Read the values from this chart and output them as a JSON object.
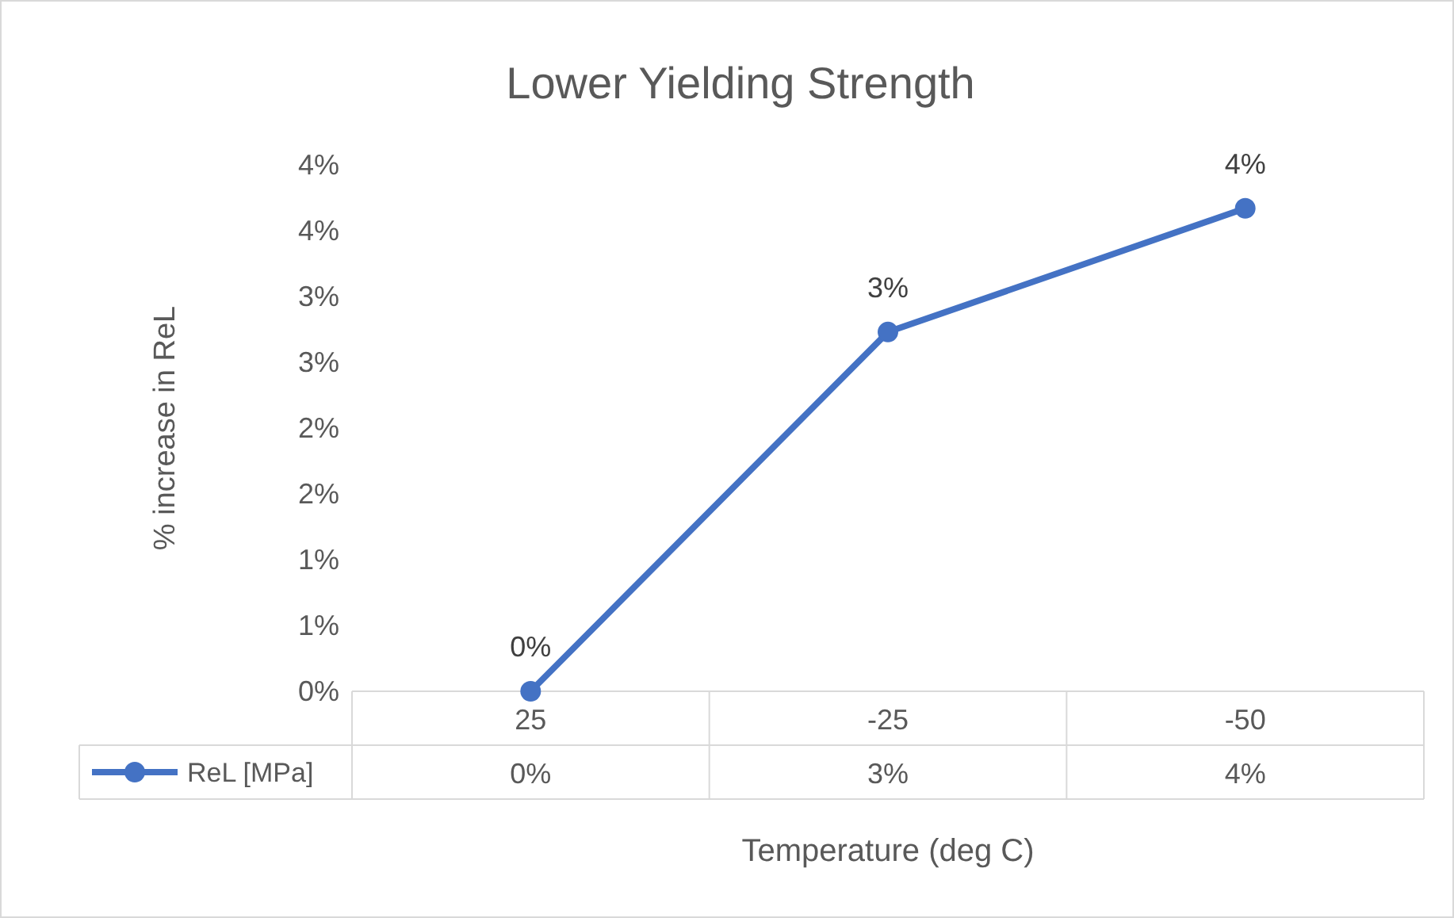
{
  "chart_data": {
    "type": "line",
    "title": "Lower Yielding Strength",
    "xlabel": "Temperature (deg C)",
    "ylabel": "% increase in ReL",
    "categories": [
      "25",
      "-25",
      "-50"
    ],
    "series": [
      {
        "name": "ReL [MPa]",
        "color": "#4472c4",
        "values": [
          0,
          2.73,
          3.67
        ],
        "value_labels": [
          "0%",
          "3%",
          "4%"
        ]
      }
    ],
    "ylim": [
      0,
      4
    ],
    "yticks": [
      {
        "value": 0,
        "label": "0%"
      },
      {
        "value": 0.5,
        "label": "1%"
      },
      {
        "value": 1,
        "label": "1%"
      },
      {
        "value": 1.5,
        "label": "2%"
      },
      {
        "value": 2,
        "label": "2%"
      },
      {
        "value": 2.5,
        "label": "3%"
      },
      {
        "value": 3,
        "label": "3%"
      },
      {
        "value": 3.5,
        "label": "4%"
      },
      {
        "value": 4,
        "label": "4%"
      }
    ],
    "grid": false,
    "legend": "bottom",
    "marker": "circle",
    "line_style": "solid"
  }
}
